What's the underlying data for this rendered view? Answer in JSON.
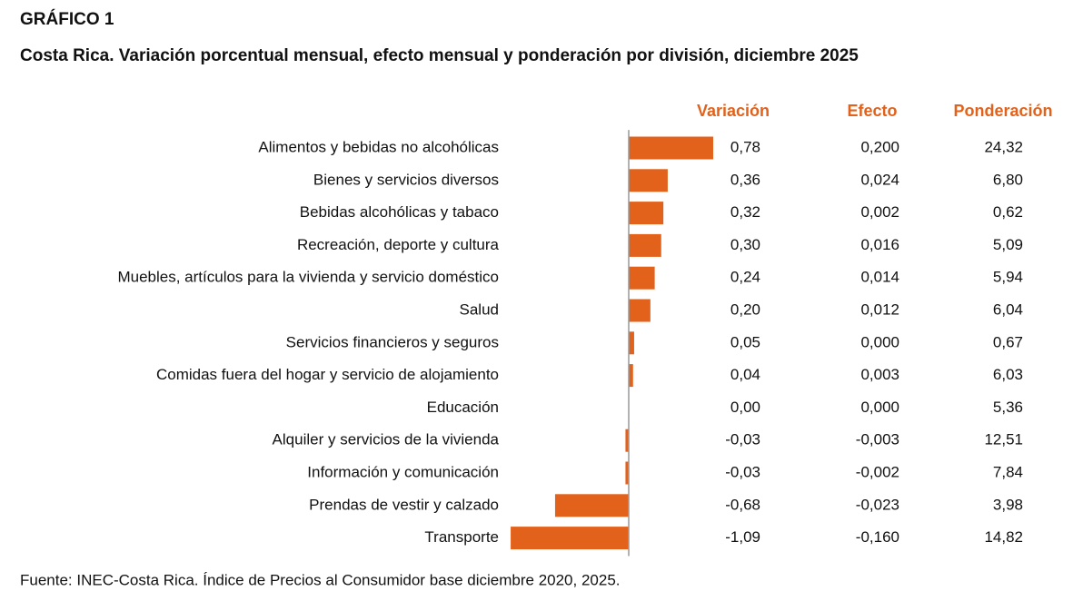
{
  "chart_data": {
    "type": "bar",
    "label": "GRÁFICO 1",
    "title": "Costa Rica. Variación porcentual mensual, efecto mensual y ponderación por división, diciembre 2025",
    "categories": [
      "Alimentos y bebidas no alcohólicas",
      "Bienes y servicios diversos",
      "Bebidas alcohólicas y tabaco",
      "Recreación, deporte y cultura",
      "Muebles, artículos para la vivienda y servicio doméstico",
      "Salud",
      "Servicios financieros y seguros",
      "Comidas fuera del hogar y servicio de alojamiento",
      "Educación",
      "Alquiler y servicios de la vivienda",
      "Información y comunicación",
      "Prendas de vestir y calzado",
      "Transporte"
    ],
    "series": [
      {
        "name": "Variación",
        "color": "#e2621b",
        "values": [
          0.78,
          0.36,
          0.32,
          0.3,
          0.24,
          0.2,
          0.05,
          0.04,
          0.0,
          -0.03,
          -0.03,
          -0.68,
          -1.09
        ],
        "value_labels": [
          "0,78",
          "0,36",
          "0,32",
          "0,30",
          "0,24",
          "0,20",
          "0,05",
          "0,04",
          "0,00",
          "-0,03",
          "-0,03",
          "-0,68",
          "-1,09"
        ]
      }
    ],
    "columns": [
      {
        "name": "Efecto",
        "values": [
          0.2,
          0.024,
          0.002,
          0.016,
          0.014,
          0.012,
          0.0,
          0.003,
          0.0,
          -0.003,
          -0.002,
          -0.023,
          -0.16
        ],
        "value_labels": [
          "0,200",
          "0,024",
          "0,002",
          "0,016",
          "0,014",
          "0,012",
          "0,000",
          "0,003",
          "0,000",
          "-0,003",
          "-0,002",
          "-0,023",
          "-0,160"
        ]
      },
      {
        "name": "Ponderación",
        "values": [
          24.32,
          6.8,
          0.62,
          5.09,
          5.94,
          6.04,
          0.67,
          6.03,
          5.36,
          12.51,
          7.84,
          3.98,
          14.82
        ],
        "value_labels": [
          "24,32",
          "6,80",
          "0,62",
          "5,09",
          "5,94",
          "6,04",
          "0,67",
          "6,03",
          "5,36",
          "12,51",
          "7,84",
          "3,98",
          "14,82"
        ]
      }
    ],
    "header_color": "#e2621b",
    "source": "Fuente: INEC-Costa Rica. Índice de Precios al Consumidor base diciembre 2020, 2025."
  }
}
